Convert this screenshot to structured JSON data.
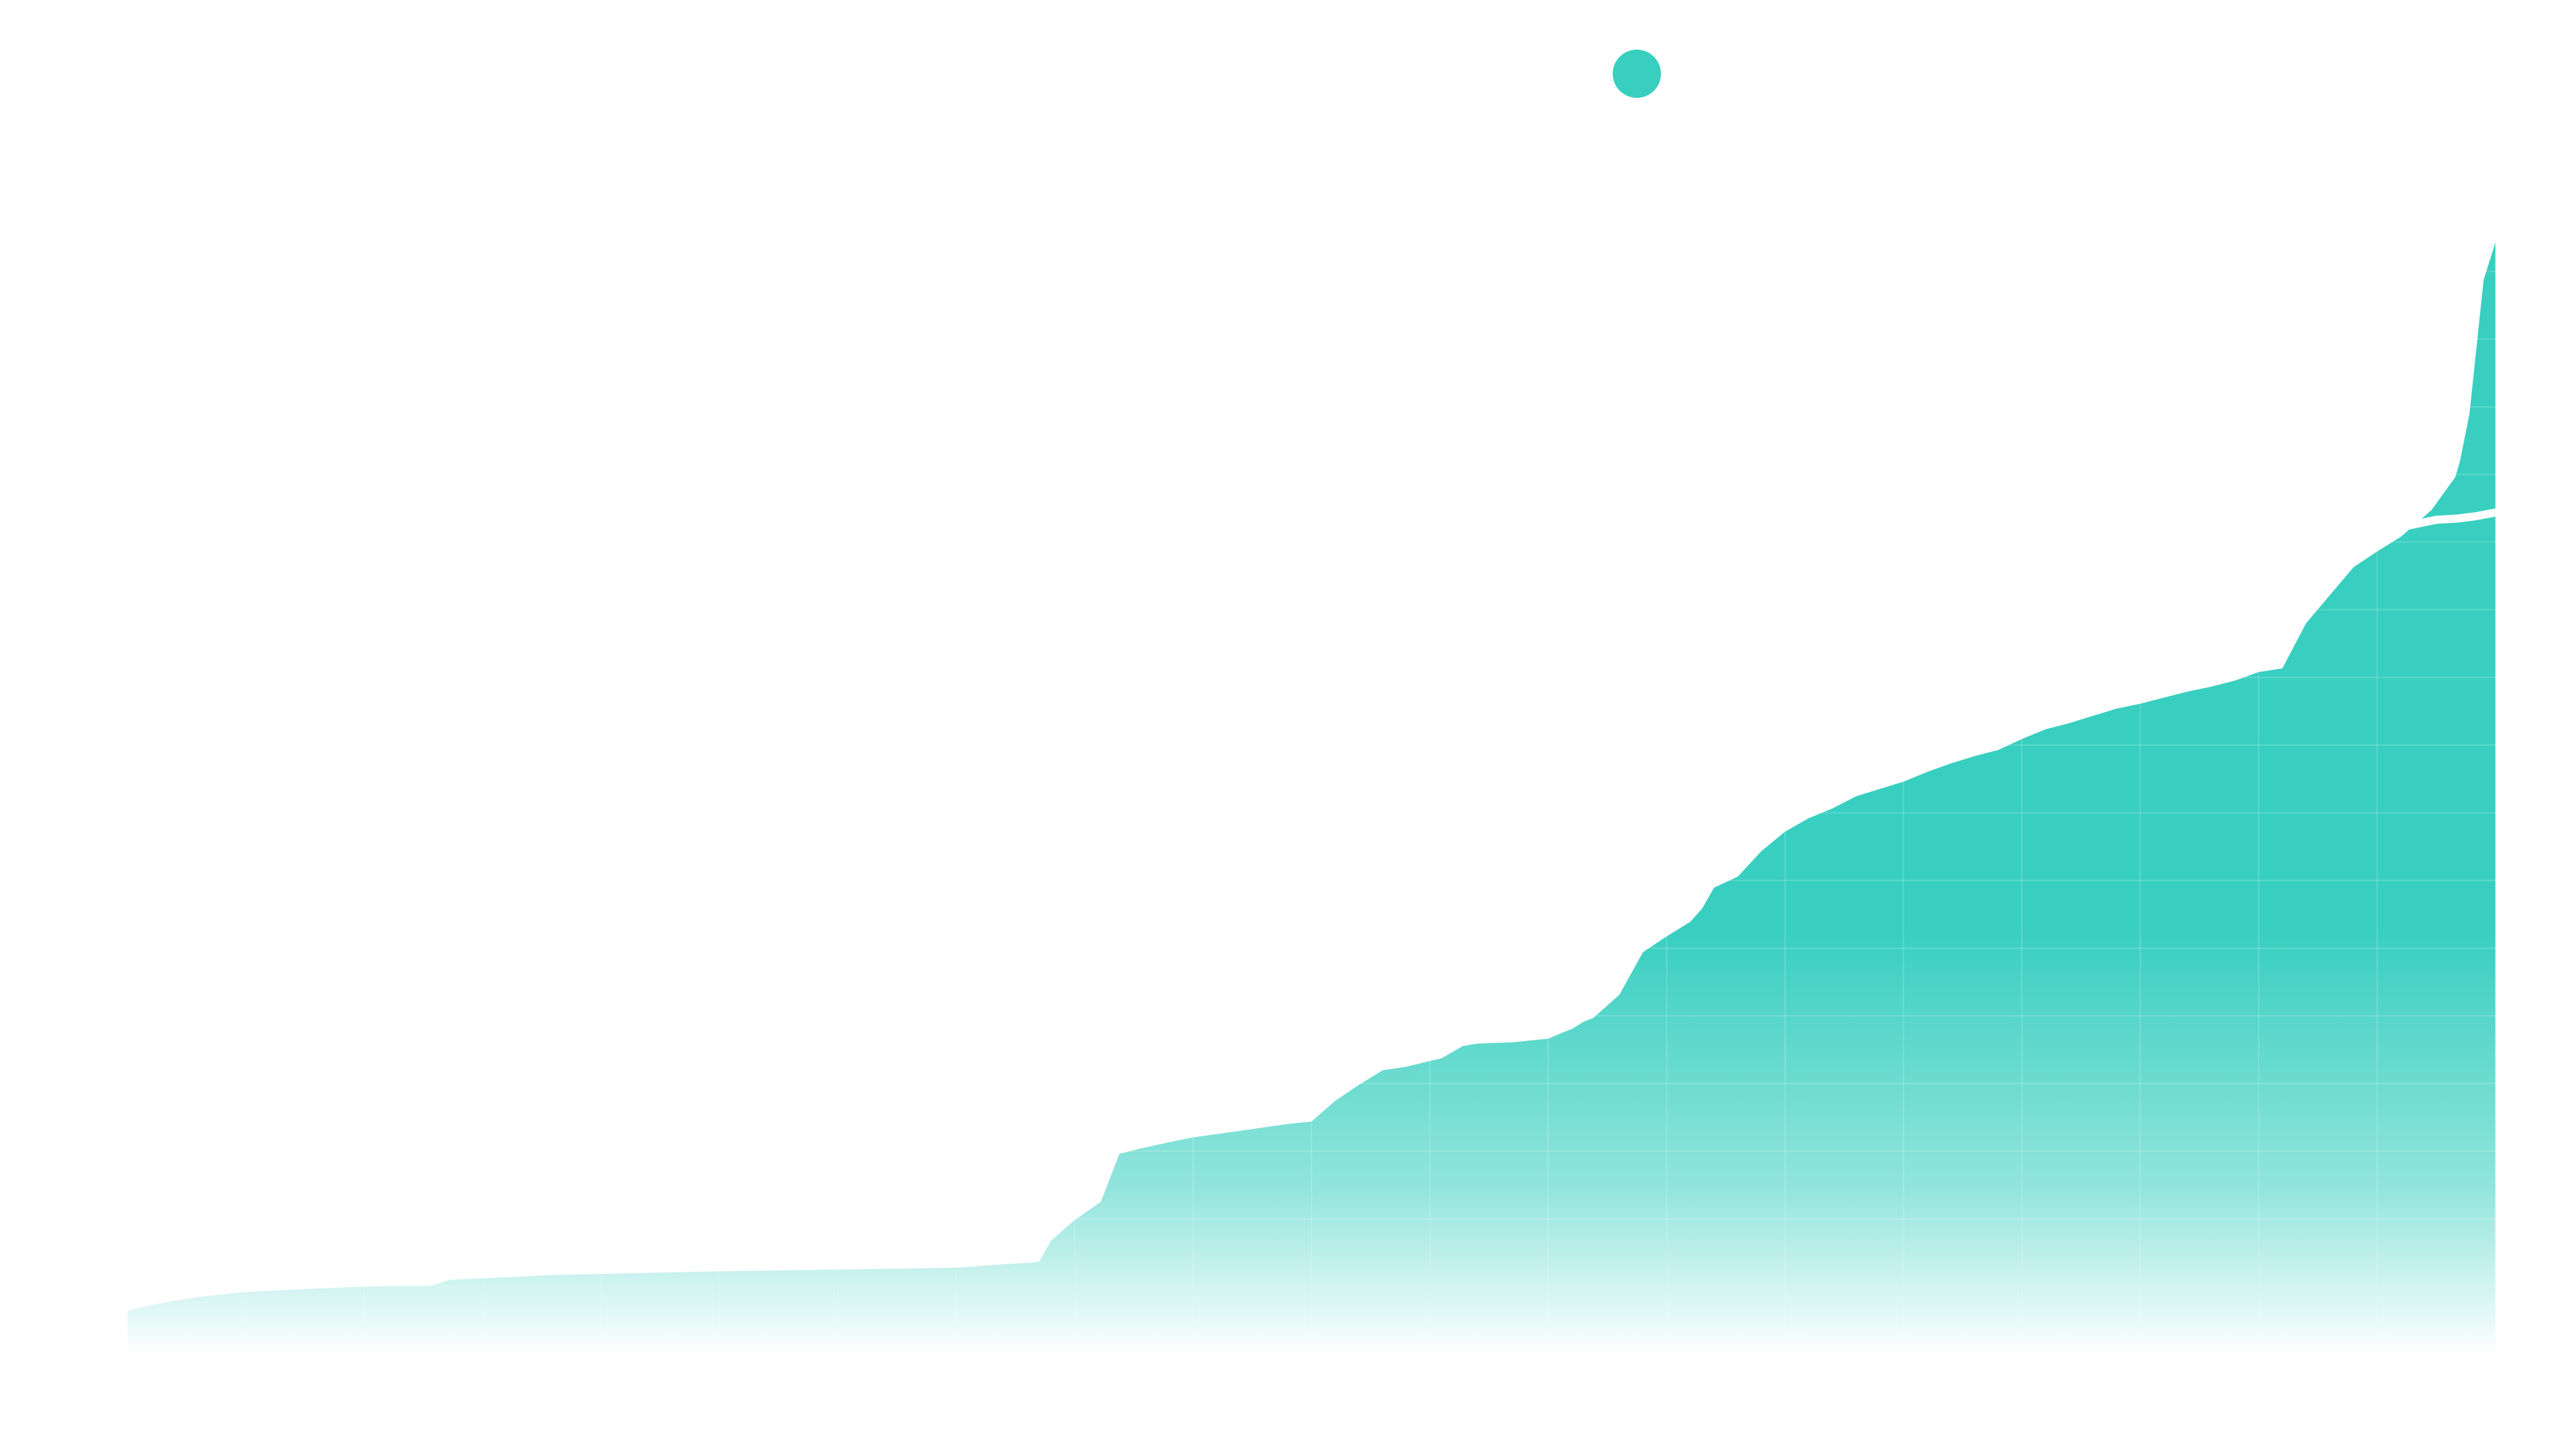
{
  "colors": {
    "accent": "#38cfc0",
    "background": "#ffffff",
    "trend_line": "#ffffff",
    "grid": "#ffffff"
  },
  "chart_data": {
    "type": "area",
    "title": "",
    "xlabel": "",
    "ylabel": "",
    "grid": true,
    "legend": {
      "placement": "top-center",
      "entries": [
        {
          "marker": "circle",
          "color": "#38cfc0",
          "label": ""
        }
      ]
    },
    "xlim": [
      0,
      100
    ],
    "ylim": [
      0,
      100
    ],
    "series": [
      {
        "kind": "area",
        "color": "#38cfc0",
        "fill": "vertical-gradient",
        "x": [
          0,
          0.4,
          1.7,
          3,
          5,
          8,
          11,
          12.8,
          13.6,
          18,
          25,
          32,
          35,
          37.2,
          38.1,
          38.5,
          39,
          39.7,
          40,
          41.1,
          41.9,
          42,
          42.6,
          44,
          45,
          46.5,
          49,
          50,
          51,
          52,
          53,
          54,
          55.5,
          56.4,
          57,
          58.5,
          60,
          60.6,
          61,
          61.5,
          61.9,
          63,
          64,
          65,
          66,
          66.5,
          67,
          68,
          69,
          70,
          71,
          72,
          73,
          75,
          76,
          77,
          78,
          79,
          80,
          81,
          82,
          82.5,
          83,
          84,
          85,
          86,
          87,
          88,
          89,
          90,
          91,
          92,
          94,
          95,
          96,
          97.3,
          98.3,
          98.5,
          98.9,
          99.5,
          100
        ],
        "y": [
          3.5,
          3.8,
          4.3,
          4.7,
          5.1,
          5.4,
          5.6,
          5.6,
          6.1,
          6.5,
          6.8,
          7.0,
          7.1,
          7.4,
          7.5,
          7.6,
          9.3,
          10.5,
          11.0,
          12.5,
          16.5,
          16.5,
          16.8,
          17.4,
          17.8,
          18.2,
          18.9,
          19.1,
          20.8,
          22.1,
          23.3,
          23.6,
          24.3,
          25.3,
          25.5,
          25.6,
          25.9,
          26.4,
          26.7,
          27.3,
          27.6,
          29.5,
          33.0,
          34.3,
          35.5,
          36.6,
          38.3,
          39.2,
          41.3,
          42.9,
          44.0,
          44.8,
          45.8,
          47.0,
          47.8,
          48.5,
          49.1,
          49.6,
          50.5,
          51.3,
          51.8,
          52.1,
          52.4,
          53.0,
          53.4,
          53.9,
          54.4,
          54.8,
          55.3,
          56.0,
          56.3,
          60.0,
          64.6,
          65.9,
          67.1,
          69.3,
          72.0,
          73.3,
          77.2,
          88.2,
          91.3
        ]
      },
      {
        "kind": "line",
        "color": "#ffffff",
        "x": [
          92.5,
          93.4,
          94.5,
          95.2,
          96.0,
          97.5,
          98.4,
          99.2,
          100
        ],
        "y": [
          66.9,
          67.0,
          67.1,
          67.6,
          67.9,
          68.5,
          68.6,
          68.8,
          69.1
        ]
      }
    ]
  }
}
